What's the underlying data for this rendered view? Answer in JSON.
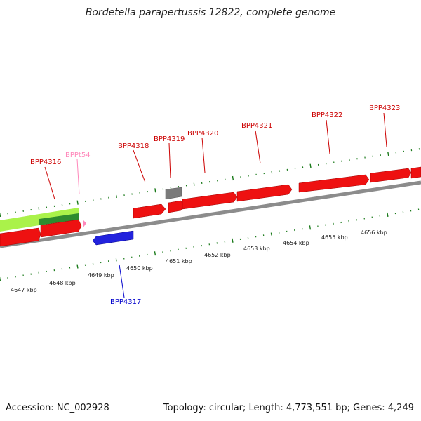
{
  "title": "Bordetella parapertussis 12822, complete genome",
  "footer": {
    "accession": "Accession: NC_002928",
    "info": "Topology: circular; Length: 4,773,551 bp; Genes: 4,249"
  },
  "colors": {
    "forward_gene": "#ee1111",
    "reverse_gene": "#2222dd",
    "pseudo_gene": "#7a7a7a",
    "trna": "#ff88bb",
    "region_light": "#aaf24a",
    "region_dark": "#2e8b2e",
    "tick": "#1a7a1a",
    "backbone": "#8c8c8c"
  },
  "kbp_labels": [
    "4647 kbp",
    "4648 kbp",
    "4649 kbp",
    "4650 kbp",
    "4651 kbp",
    "4652 kbp",
    "4653 kbp",
    "4654 kbp",
    "4655 kbp",
    "4656 kbp"
  ],
  "gene_labels": [
    {
      "text": "BPP4316",
      "strand": "forward"
    },
    {
      "text": "BPPt54",
      "strand": "trna"
    },
    {
      "text": "BPP4318",
      "strand": "forward"
    },
    {
      "text": "BPP4319",
      "strand": "forward"
    },
    {
      "text": "BPP4320",
      "strand": "forward"
    },
    {
      "text": "BPP4321",
      "strand": "forward"
    },
    {
      "text": "BPP4322",
      "strand": "forward"
    },
    {
      "text": "BPP4323",
      "strand": "forward"
    },
    {
      "text": "BPP4317",
      "strand": "reverse"
    }
  ]
}
